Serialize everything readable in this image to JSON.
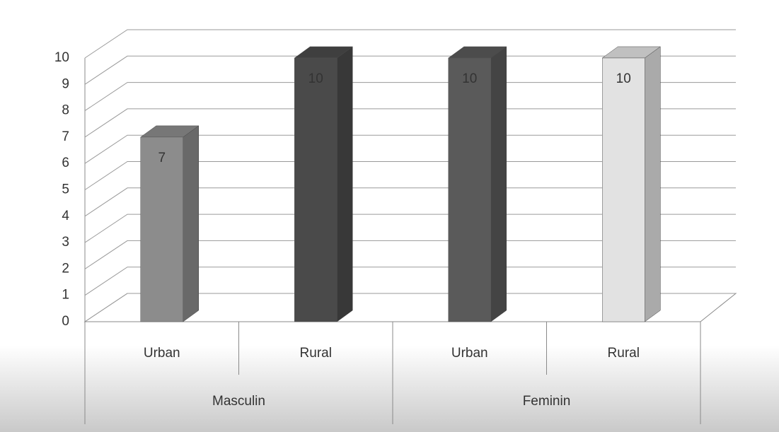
{
  "chart_data": {
    "type": "bar3d",
    "categories": [
      "Urban",
      "Rural",
      "Urban",
      "Rural"
    ],
    "groups": [
      "Masculin",
      "Feminin"
    ],
    "values": [
      7,
      10,
      10,
      10
    ],
    "colors": [
      "#8c8c8c",
      "#4a4a4a",
      "#5a5a5a",
      "#e2e2e2"
    ],
    "ylim": [
      0,
      10
    ],
    "yticks": [
      0,
      1,
      2,
      3,
      4,
      5,
      6,
      7,
      8,
      9,
      10
    ],
    "grid": true,
    "data_labels": true
  }
}
